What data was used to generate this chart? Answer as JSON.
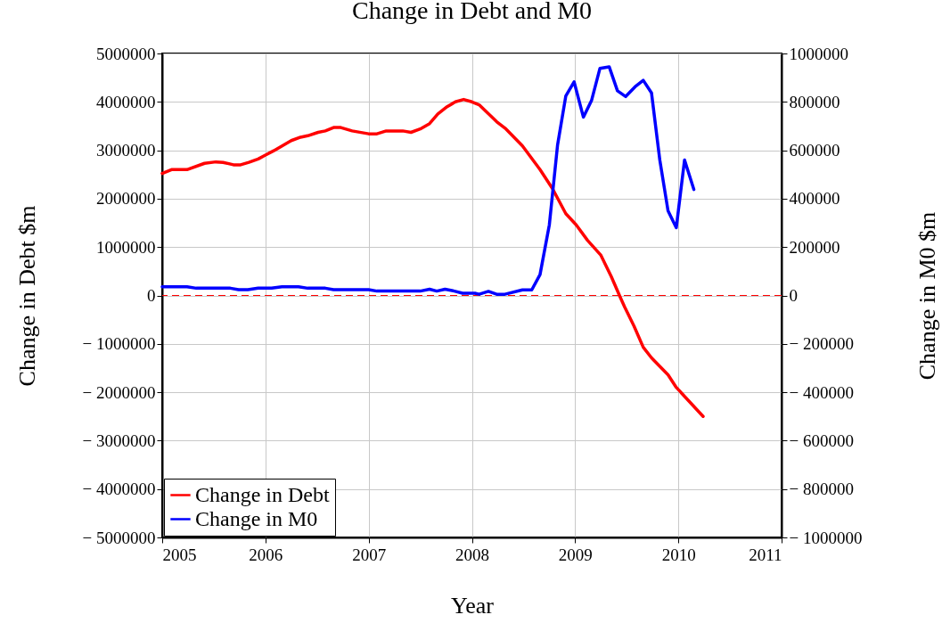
{
  "chart_data": {
    "type": "line",
    "title": "Change in Debt and M0",
    "xlabel": "Year",
    "ylabel": "Change in Debt $m",
    "y2label": "Change in M0 $m",
    "xlim": [
      2005,
      2011
    ],
    "xticks": [
      2005,
      2006,
      2007,
      2008,
      2009,
      2010,
      2011
    ],
    "ylim": [
      -5000000,
      5000000
    ],
    "yticks": [
      {
        "value": -5000000,
        "label": "− 5000000"
      },
      {
        "value": -4000000,
        "label": "− 4000000"
      },
      {
        "value": -3000000,
        "label": "− 3000000"
      },
      {
        "value": -2000000,
        "label": "− 2000000"
      },
      {
        "value": -1000000,
        "label": "− 1000000"
      },
      0,
      1000000,
      2000000,
      3000000,
      4000000,
      5000000
    ],
    "y2lim": [
      -1000000,
      1000000
    ],
    "y2ticks": [
      {
        "value": -1000000,
        "label": "− 1000000"
      },
      {
        "value": -800000,
        "label": "− 800000"
      },
      {
        "value": -600000,
        "label": "− 600000"
      },
      {
        "value": -400000,
        "label": "− 400000"
      },
      {
        "value": -200000,
        "label": "− 200000"
      },
      0,
      200000,
      400000,
      600000,
      800000,
      1000000
    ],
    "grid": true,
    "legend": "bottom left",
    "line_style": "solid",
    "ref_lines": [
      {
        "axis": "y",
        "value": 0,
        "color": "#ff0000",
        "line_style": "dashed"
      }
    ],
    "series": [
      {
        "name": "Change in Debt",
        "color": "#ff0000",
        "x": [
          2005.0,
          2005.09,
          2005.24,
          2005.41,
          2005.52,
          2005.59,
          2005.69,
          2005.76,
          2005.84,
          2005.93,
          2006.0,
          2006.08,
          2006.25,
          2006.34,
          2006.41,
          2006.51,
          2006.58,
          2006.66,
          2006.73,
          2006.84,
          2007.0,
          2007.08,
          2007.17,
          2007.33,
          2007.41,
          2007.5,
          2007.59,
          2007.67,
          2007.76,
          2007.84,
          2007.92,
          2008.0,
          2008.07,
          2008.24,
          2008.33,
          2008.49,
          2008.66,
          2008.78,
          2008.91,
          2009.01,
          2009.12,
          2009.25,
          2009.35,
          2009.44,
          2009.48,
          2009.57,
          2009.66,
          2009.74,
          2009.9,
          2009.98,
          2010.24
        ],
        "values": [
          2520000,
          2600000,
          2600000,
          2730000,
          2760000,
          2750000,
          2700000,
          2700000,
          2750000,
          2820000,
          2900000,
          2990000,
          3200000,
          3270000,
          3300000,
          3370000,
          3400000,
          3470000,
          3470000,
          3400000,
          3340000,
          3340000,
          3400000,
          3400000,
          3370000,
          3440000,
          3550000,
          3750000,
          3900000,
          4000000,
          4050000,
          4000000,
          3940000,
          3590000,
          3440000,
          3090000,
          2600000,
          2210000,
          1690000,
          1460000,
          1140000,
          830000,
          390000,
          -50000,
          -240000,
          -630000,
          -1070000,
          -1290000,
          -1640000,
          -1900000,
          -2500000
        ]
      },
      {
        "name": "Change in M0",
        "color": "#0000ff",
        "axis": "y2",
        "x": [
          2005.0,
          2005.24,
          2005.33,
          2005.66,
          2005.74,
          2005.83,
          2005.93,
          2006.06,
          2006.16,
          2006.32,
          2006.41,
          2006.58,
          2006.66,
          2007.0,
          2007.08,
          2007.5,
          2007.59,
          2007.66,
          2007.74,
          2007.83,
          2007.91,
          2008.03,
          2008.07,
          2008.16,
          2008.24,
          2008.32,
          2008.49,
          2008.58,
          2008.66,
          2008.75,
          2008.83,
          2008.91,
          2008.99,
          2009.08,
          2009.16,
          2009.24,
          2009.33,
          2009.41,
          2009.49,
          2009.58,
          2009.66,
          2009.74,
          2009.82,
          2009.9,
          2009.98,
          2010.06,
          2010.15
        ],
        "values": [
          36000,
          36000,
          30000,
          30000,
          24000,
          24000,
          30000,
          30000,
          36000,
          36000,
          30000,
          30000,
          24000,
          24000,
          18000,
          18000,
          26000,
          18000,
          26000,
          18000,
          9000,
          9000,
          5000,
          17000,
          5000,
          5000,
          23000,
          23000,
          86000,
          291000,
          622000,
          825000,
          883000,
          737000,
          807000,
          938000,
          945000,
          846000,
          822000,
          862000,
          889000,
          837000,
          561000,
          350000,
          280000,
          560000,
          438000
        ]
      }
    ]
  }
}
